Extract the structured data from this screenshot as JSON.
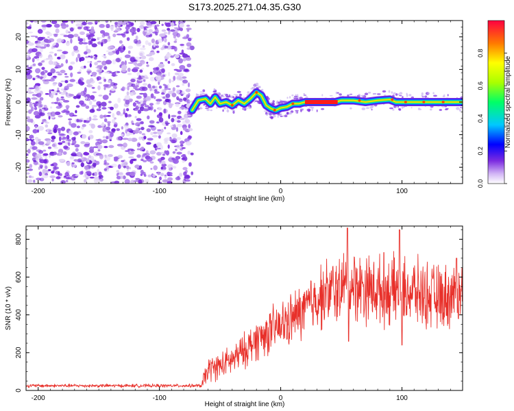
{
  "title": "S173.2025.271.04.35.G30",
  "colors": {
    "frame": "#000000",
    "snr_line": "#e8302a",
    "scatter_purple": "#7a2be0",
    "scatter_light": "#d8c4f2"
  },
  "chart_data": [
    {
      "type": "heatmap",
      "name": "spectrogram",
      "xlabel": "Height of straight line (km)",
      "ylabel": "Frequency (Hz)",
      "xlim": [
        -210,
        150
      ],
      "ylim": [
        -25,
        25
      ],
      "xticks": [
        -200,
        -100,
        0,
        100
      ],
      "yticks": [
        -20,
        -10,
        0,
        10,
        20
      ],
      "noise_region_x": [
        -210,
        -73
      ],
      "ridge": [
        [
          -73,
          -2.5
        ],
        [
          -68,
          0.5
        ],
        [
          -62,
          1.0
        ],
        [
          -58,
          -0.5
        ],
        [
          -54,
          1.5
        ],
        [
          -50,
          -0.5
        ],
        [
          -45,
          0.0
        ],
        [
          -40,
          -1.0
        ],
        [
          -35,
          0.5
        ],
        [
          -30,
          -0.5
        ],
        [
          -25,
          1.0
        ],
        [
          -20,
          3.0
        ],
        [
          -16,
          2.0
        ],
        [
          -12,
          -1.0
        ],
        [
          -8,
          -2.0
        ],
        [
          -4,
          -2.5
        ],
        [
          0,
          -1.8
        ],
        [
          5,
          -1.5
        ],
        [
          10,
          -0.5
        ],
        [
          15,
          -0.5
        ],
        [
          20,
          0.0
        ],
        [
          30,
          0.0
        ],
        [
          45,
          0.0
        ],
        [
          50,
          0.5
        ],
        [
          60,
          0.5
        ],
        [
          70,
          0.0
        ],
        [
          80,
          0.5
        ],
        [
          90,
          0.8
        ],
        [
          95,
          0.0
        ],
        [
          100,
          0.0
        ],
        [
          110,
          0.0
        ],
        [
          120,
          0.0
        ],
        [
          130,
          0.0
        ],
        [
          140,
          0.0
        ],
        [
          150,
          0.0
        ]
      ],
      "colorbar": {
        "label": "Normalized spectral amplitude",
        "range": [
          0,
          1
        ],
        "ticks": [
          "0.0",
          "0.2",
          "0.4",
          "0.6",
          "0.8"
        ]
      }
    },
    {
      "type": "line",
      "name": "snr",
      "xlabel": "Height of straight line (km)",
      "ylabel": "SNR (10 * v/v)",
      "xlim": [
        -210,
        150
      ],
      "ylim": [
        0,
        870
      ],
      "xticks": [
        -200,
        -100,
        0,
        100
      ],
      "yticks": [
        0,
        200,
        400,
        600,
        800
      ],
      "series": [
        {
          "name": "SNR",
          "trend": [
            [
              -210,
              25
            ],
            [
              -65,
              25
            ],
            [
              -60,
              110
            ],
            [
              -50,
              130
            ],
            [
              -40,
              160
            ],
            [
              -30,
              210
            ],
            [
              -20,
              270
            ],
            [
              -10,
              310
            ],
            [
              0,
              340
            ],
            [
              10,
              380
            ],
            [
              20,
              430
            ],
            [
              30,
              490
            ],
            [
              40,
              520
            ],
            [
              50,
              540
            ],
            [
              60,
              560
            ],
            [
              70,
              545
            ],
            [
              80,
              530
            ],
            [
              90,
              525
            ],
            [
              100,
              530
            ],
            [
              110,
              520
            ],
            [
              120,
              505
            ],
            [
              130,
              490
            ],
            [
              140,
              500
            ],
            [
              150,
              510
            ]
          ],
          "spikes": [
            [
              55,
              860
            ],
            [
              56,
              260
            ],
            [
              98,
              850
            ],
            [
              100,
              240
            ],
            [
              85,
              730
            ],
            [
              145,
              700
            ]
          ]
        }
      ]
    }
  ]
}
